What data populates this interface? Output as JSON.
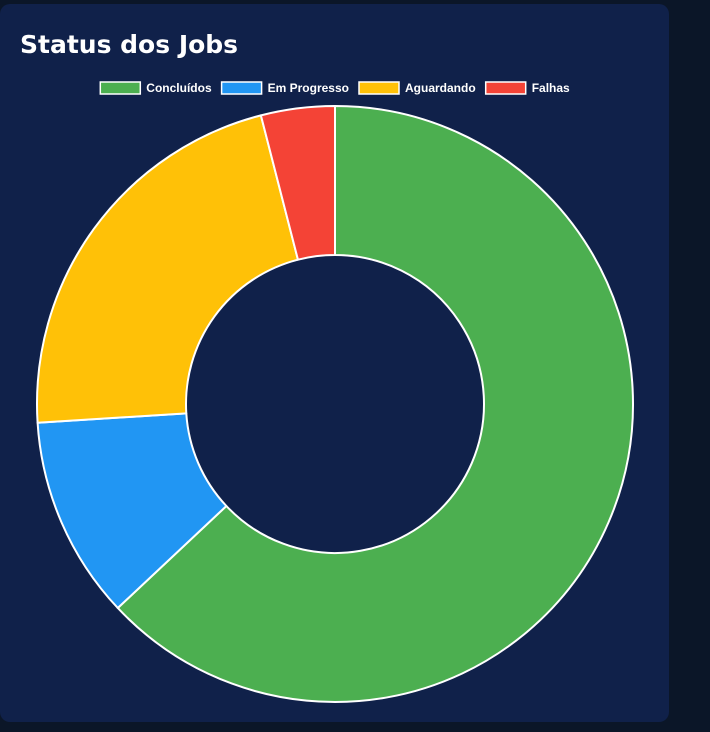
{
  "card": {
    "title": "Status dos Jobs"
  },
  "chart_data": {
    "type": "pie",
    "variant": "doughnut",
    "title": "Status dos Jobs",
    "legend_position": "top",
    "categories": [
      "Concluídos",
      "Em Progresso",
      "Aguardando",
      "Falhas"
    ],
    "values": [
      63,
      11,
      22,
      4
    ],
    "colors": [
      "#4caf50",
      "#2196f3",
      "#ffc107",
      "#f44336"
    ],
    "value_unit": "percent of total (estimated)"
  }
}
